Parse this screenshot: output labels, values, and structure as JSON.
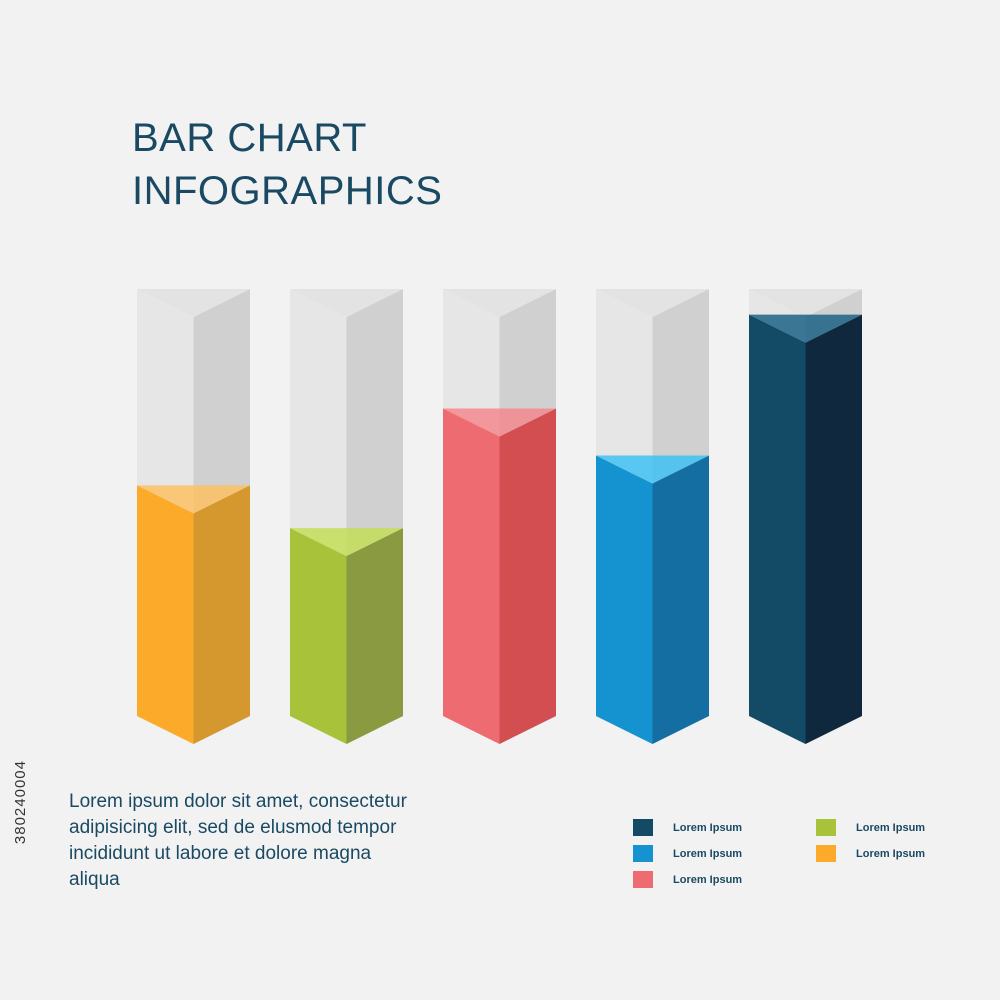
{
  "title": {
    "line1": "BAR CHART",
    "line2": "INFOGRAPHICS"
  },
  "description": "Lorem ipsum dolor sit amet, consectetur adipisicing elit, sed de elusmod tempor incididunt ut labore et dolore magna aliqua",
  "legend": [
    {
      "label": "Lorem Ipsum",
      "color": "#134a66"
    },
    {
      "label": "Lorem Ipsum",
      "color": "#1592d0"
    },
    {
      "label": "Lorem Ipsum",
      "color": "#ef6b72"
    },
    {
      "label": "Lorem Ipsum",
      "color": "#a8c23a"
    },
    {
      "label": "Lorem Ipsum",
      "color": "#fbab29"
    }
  ],
  "watermark": "380240004",
  "chart_data": {
    "type": "bar",
    "categories": [
      "",
      "",
      "",
      "",
      ""
    ],
    "values": [
      54,
      44,
      72,
      61,
      94
    ],
    "ylim": [
      0,
      100
    ],
    "grid": false,
    "legend_position": "bottom-right",
    "colors": [
      {
        "front": "#fbab29",
        "side": "#d4982f",
        "top": "#fdc063"
      },
      {
        "front": "#a8c23a",
        "side": "#899a40",
        "top": "#c3dd58"
      },
      {
        "front": "#ef6b72",
        "side": "#d24e51",
        "top": "#f3888e"
      },
      {
        "front": "#1592d0",
        "side": "#146ea2",
        "top": "#3ec1f2"
      },
      {
        "front": "#134a66",
        "side": "#10283d",
        "top": "#1c6286"
      }
    ],
    "track_colors": {
      "front": "#e6e6e6",
      "side": "#d0d0d0",
      "top": "#e3e3e3"
    }
  }
}
